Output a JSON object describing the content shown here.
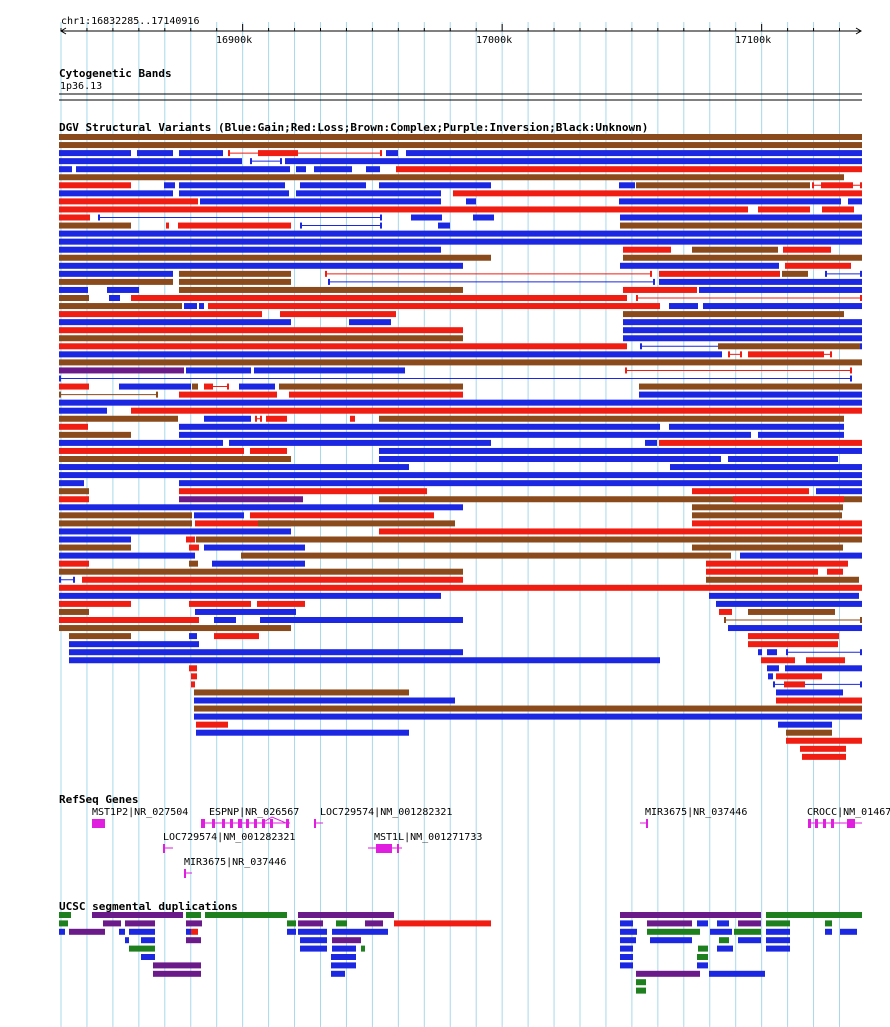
{
  "location": "chr1:16832285..17140916",
  "ruler": {
    "ticks": [
      "16900k",
      "17000k",
      "17100k"
    ]
  },
  "tracks": {
    "cytoband": {
      "title": "Cytogenetic Bands",
      "band": "1p36.13"
    },
    "dgv": {
      "title": "DGV Structural Variants (Blue:Gain;Red:Loss;Brown:Complex;Purple:Inversion;Black:Unknown)"
    },
    "refseq": {
      "title": "RefSeq Genes",
      "genes": [
        "MST1P2|NR_027504",
        "ESPNP|NR_026567",
        "LOC729574|NM_001282321",
        "LOC729574|NM_001282321",
        "MIR3675|NR_037446",
        "MST1L|NM_001271733",
        "MIR3675|NR_037446",
        "CROCC|NM_01467"
      ]
    },
    "segdup": {
      "title": "UCSC segmental duplications"
    }
  },
  "colors": {
    "gain": "#1b27e0",
    "loss": "#f01d12",
    "complex": "#8b4a1c",
    "inversion": "#6b1a8a",
    "gene": "#e01ee0",
    "segdup_green": "#1e7f1e",
    "grid": "#a8d8ea"
  }
}
